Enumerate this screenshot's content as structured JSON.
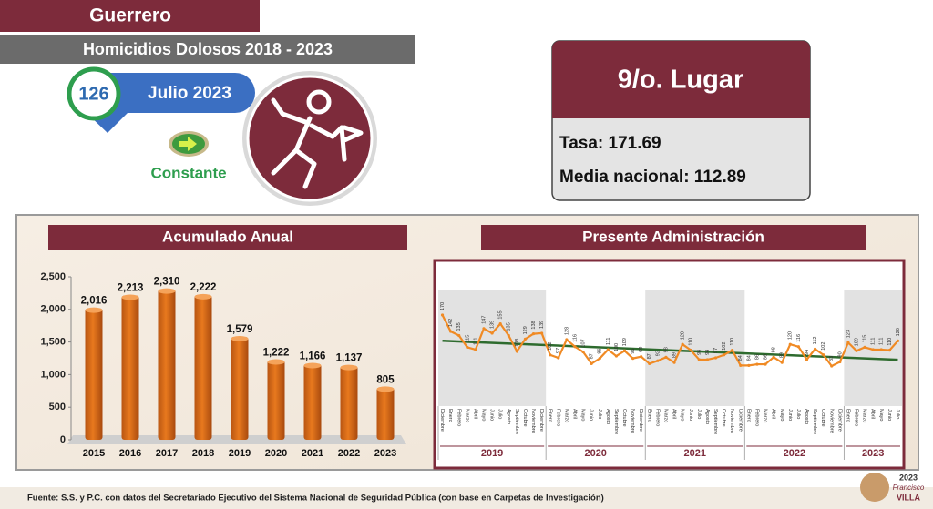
{
  "header": {
    "state": "Guerrero",
    "subtitle": "Homicidios Dolosos 2018 - 2023"
  },
  "status": {
    "count": 126,
    "period": "Julio 2023",
    "trend": "Constante"
  },
  "rank": {
    "title": "9/o. Lugar",
    "rate": "Tasa: 171.69",
    "national": "Media nacional: 112.89"
  },
  "chart_data": [
    {
      "type": "bar",
      "title": "Acumulado Anual",
      "categories": [
        "2015",
        "2016",
        "2017",
        "2018",
        "2019",
        "2020",
        "2021",
        "2022",
        "2023"
      ],
      "values": [
        2016,
        2213,
        2310,
        2222,
        1579,
        1222,
        1166,
        1137,
        805
      ],
      "value_labels": [
        "2,016",
        "2,213",
        "2,310",
        "2,222",
        "1,579",
        "1,222",
        "1,166",
        "1,137",
        "805"
      ],
      "color": "#e8791e",
      "ylim": [
        0,
        2500
      ],
      "yticks": [
        0,
        500,
        {
          "value": 1000,
          "label": "1,000"
        },
        {
          "value": 1500,
          "label": "1,500"
        },
        {
          "value": 2000,
          "label": "2,000"
        },
        {
          "value": 2500,
          "label": "2,500"
        }
      ]
    },
    {
      "type": "line",
      "title": "Presente Administración",
      "categories": [
        "Diciembre",
        "Enero",
        "Febrero",
        "Marzo",
        "Abril",
        "Mayo",
        "Junio",
        "Julio",
        "Agosto",
        "Septiembre",
        "Octubre",
        "Noviembre",
        "Diciembre",
        "Enero",
        "Febrero",
        "Marzo",
        "Abril",
        "Mayo",
        "Junio",
        "Julio",
        "Agosto",
        "Septiembre",
        "Octubre",
        "Noviembre",
        "Diciembre",
        "Enero",
        "Febrero",
        "Marzo",
        "Abril",
        "Mayo",
        "Junio",
        "Julio",
        "Agosto",
        "Septiembre",
        "Octubre",
        "Noviembre",
        "Diciembre",
        "Enero",
        "Febrero",
        "Marzo",
        "Abril",
        "Mayo",
        "Junio",
        "Julio",
        "Agosto",
        "Septiembre",
        "Octubre",
        "Noviembre",
        "Diciembre",
        "Enero",
        "Febrero",
        "Marzo",
        "Abril",
        "Mayo",
        "Junio",
        "Julio"
      ],
      "groups": [
        {
          "label": "2019",
          "size": 13
        },
        {
          "label": "2020",
          "size": 12
        },
        {
          "label": "2021",
          "size": 12
        },
        {
          "label": "2022",
          "size": 12
        },
        {
          "label": "2023",
          "size": 7
        }
      ],
      "values": [
        170,
        142,
        135,
        115,
        111,
        147,
        139,
        155,
        135,
        108,
        129,
        138,
        139,
        102,
        97,
        128,
        116,
        107,
        87,
        96,
        111,
        100,
        109,
        96,
        99,
        87,
        92,
        98,
        89,
        120,
        110,
        94,
        94,
        97,
        102,
        110,
        84,
        84,
        86,
        86,
        98,
        89,
        120,
        116,
        94,
        112,
        102,
        83,
        90,
        123,
        109,
        115,
        111,
        111,
        110,
        126
      ],
      "color": "#f08a24",
      "trend_color": "#2e6b2e",
      "shade_color": "#e2e2e2"
    }
  ],
  "source": "Fuente: S.S. y P.C. con datos del Secretariado Ejecutivo del Sistema Nacional de Seguridad Pública (con base en Carpetas de Investigación)",
  "logo": {
    "year": "2023",
    "name": "Francisco",
    "surname": "VILLA"
  }
}
